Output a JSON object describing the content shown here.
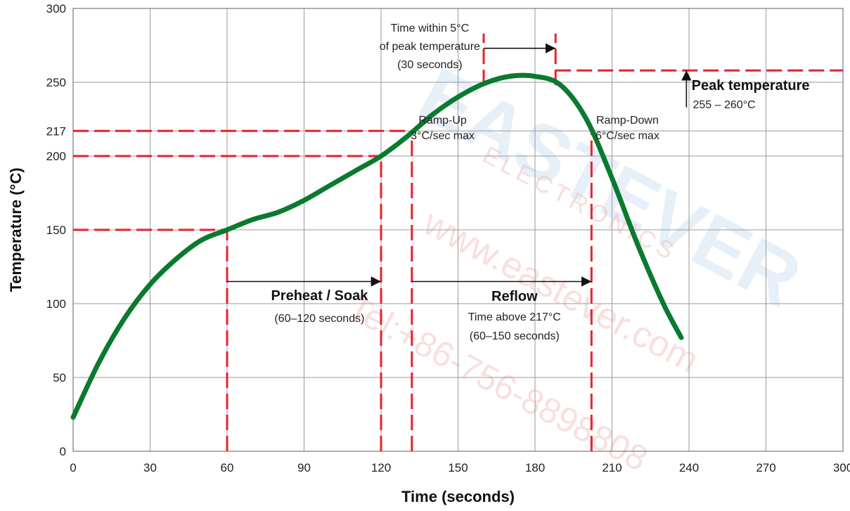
{
  "chart_data": {
    "type": "line",
    "xlabel": "Time (seconds)",
    "ylabel": "Temperature (°C)",
    "xlim": [
      0,
      300
    ],
    "ylim": [
      0,
      300
    ],
    "x_ticks": [
      0,
      30,
      60,
      90,
      120,
      150,
      180,
      210,
      240,
      270,
      300
    ],
    "y_ticks": [
      0,
      50,
      100,
      150,
      200,
      217,
      250,
      300
    ],
    "grid": true,
    "series": [
      {
        "color": "#0a7a2e",
        "points": [
          [
            0,
            23
          ],
          [
            10,
            60
          ],
          [
            20,
            90
          ],
          [
            30,
            113
          ],
          [
            40,
            130
          ],
          [
            50,
            143
          ],
          [
            60,
            150
          ],
          [
            70,
            157
          ],
          [
            80,
            162
          ],
          [
            90,
            170
          ],
          [
            100,
            180
          ],
          [
            110,
            190
          ],
          [
            120,
            200
          ],
          [
            130,
            213
          ],
          [
            140,
            228
          ],
          [
            150,
            240
          ],
          [
            160,
            249
          ],
          [
            170,
            254
          ],
          [
            180,
            254
          ],
          [
            190,
            248
          ],
          [
            200,
            225
          ],
          [
            210,
            185
          ],
          [
            220,
            140
          ],
          [
            230,
            100
          ],
          [
            237,
            77
          ]
        ]
      }
    ],
    "reference_lines": {
      "horizontal": [
        {
          "y": 150,
          "x_from": 0,
          "x_to": 60
        },
        {
          "y": 200,
          "x_from": 0,
          "x_to": 120
        },
        {
          "y": 217,
          "x_from": 0,
          "x_to": 132
        },
        {
          "y": 258,
          "x_from": 188,
          "x_to": 300
        }
      ],
      "vertical": [
        {
          "x": 60,
          "y_from": 0,
          "y_to": 150
        },
        {
          "x": 120,
          "y_from": 0,
          "y_to": 200
        },
        {
          "x": 132,
          "y_from": 0,
          "y_to": 217
        },
        {
          "x": 160,
          "y_from": 248,
          "y_to": 283
        },
        {
          "x": 188,
          "y_from": 248,
          "y_to": 283
        },
        {
          "x": 202,
          "y_from": 0,
          "y_to": 215
        }
      ],
      "color": "#e8212b"
    },
    "arrows": [
      {
        "name": "preheat-arrow",
        "x_from": 60,
        "x_to": 120,
        "y": 115
      },
      {
        "name": "reflow-arrow",
        "x_from": 132,
        "x_to": 202,
        "y": 115
      },
      {
        "name": "peak-window-arrow",
        "x_from": 160,
        "x_to": 188,
        "y": 273
      },
      {
        "name": "peak-up-arrow",
        "x": 239,
        "y_from": 233,
        "y_to": 258
      }
    ],
    "annotations": {
      "peak_window": [
        "Time within 5°C",
        "of peak temperature",
        "(30 seconds)"
      ],
      "ramp_up": [
        "Ramp-Up",
        "3°C/sec max"
      ],
      "ramp_down": [
        "Ramp-Down",
        "6°C/sec max"
      ],
      "peak_title": "Peak temperature",
      "peak_range": "255 – 260°C",
      "preheat_title": "Preheat / Soak",
      "preheat_range": "(60–120 seconds)",
      "reflow_title": "Reflow",
      "reflow_line1": "Time above 217°C",
      "reflow_line2": "(60–150 seconds)"
    },
    "watermark": {
      "brand": "EASTEVER",
      "sub": "ELECTRONICS",
      "url": "www.eastever.com",
      "phone": "Tel:+86-756-8898808"
    }
  }
}
